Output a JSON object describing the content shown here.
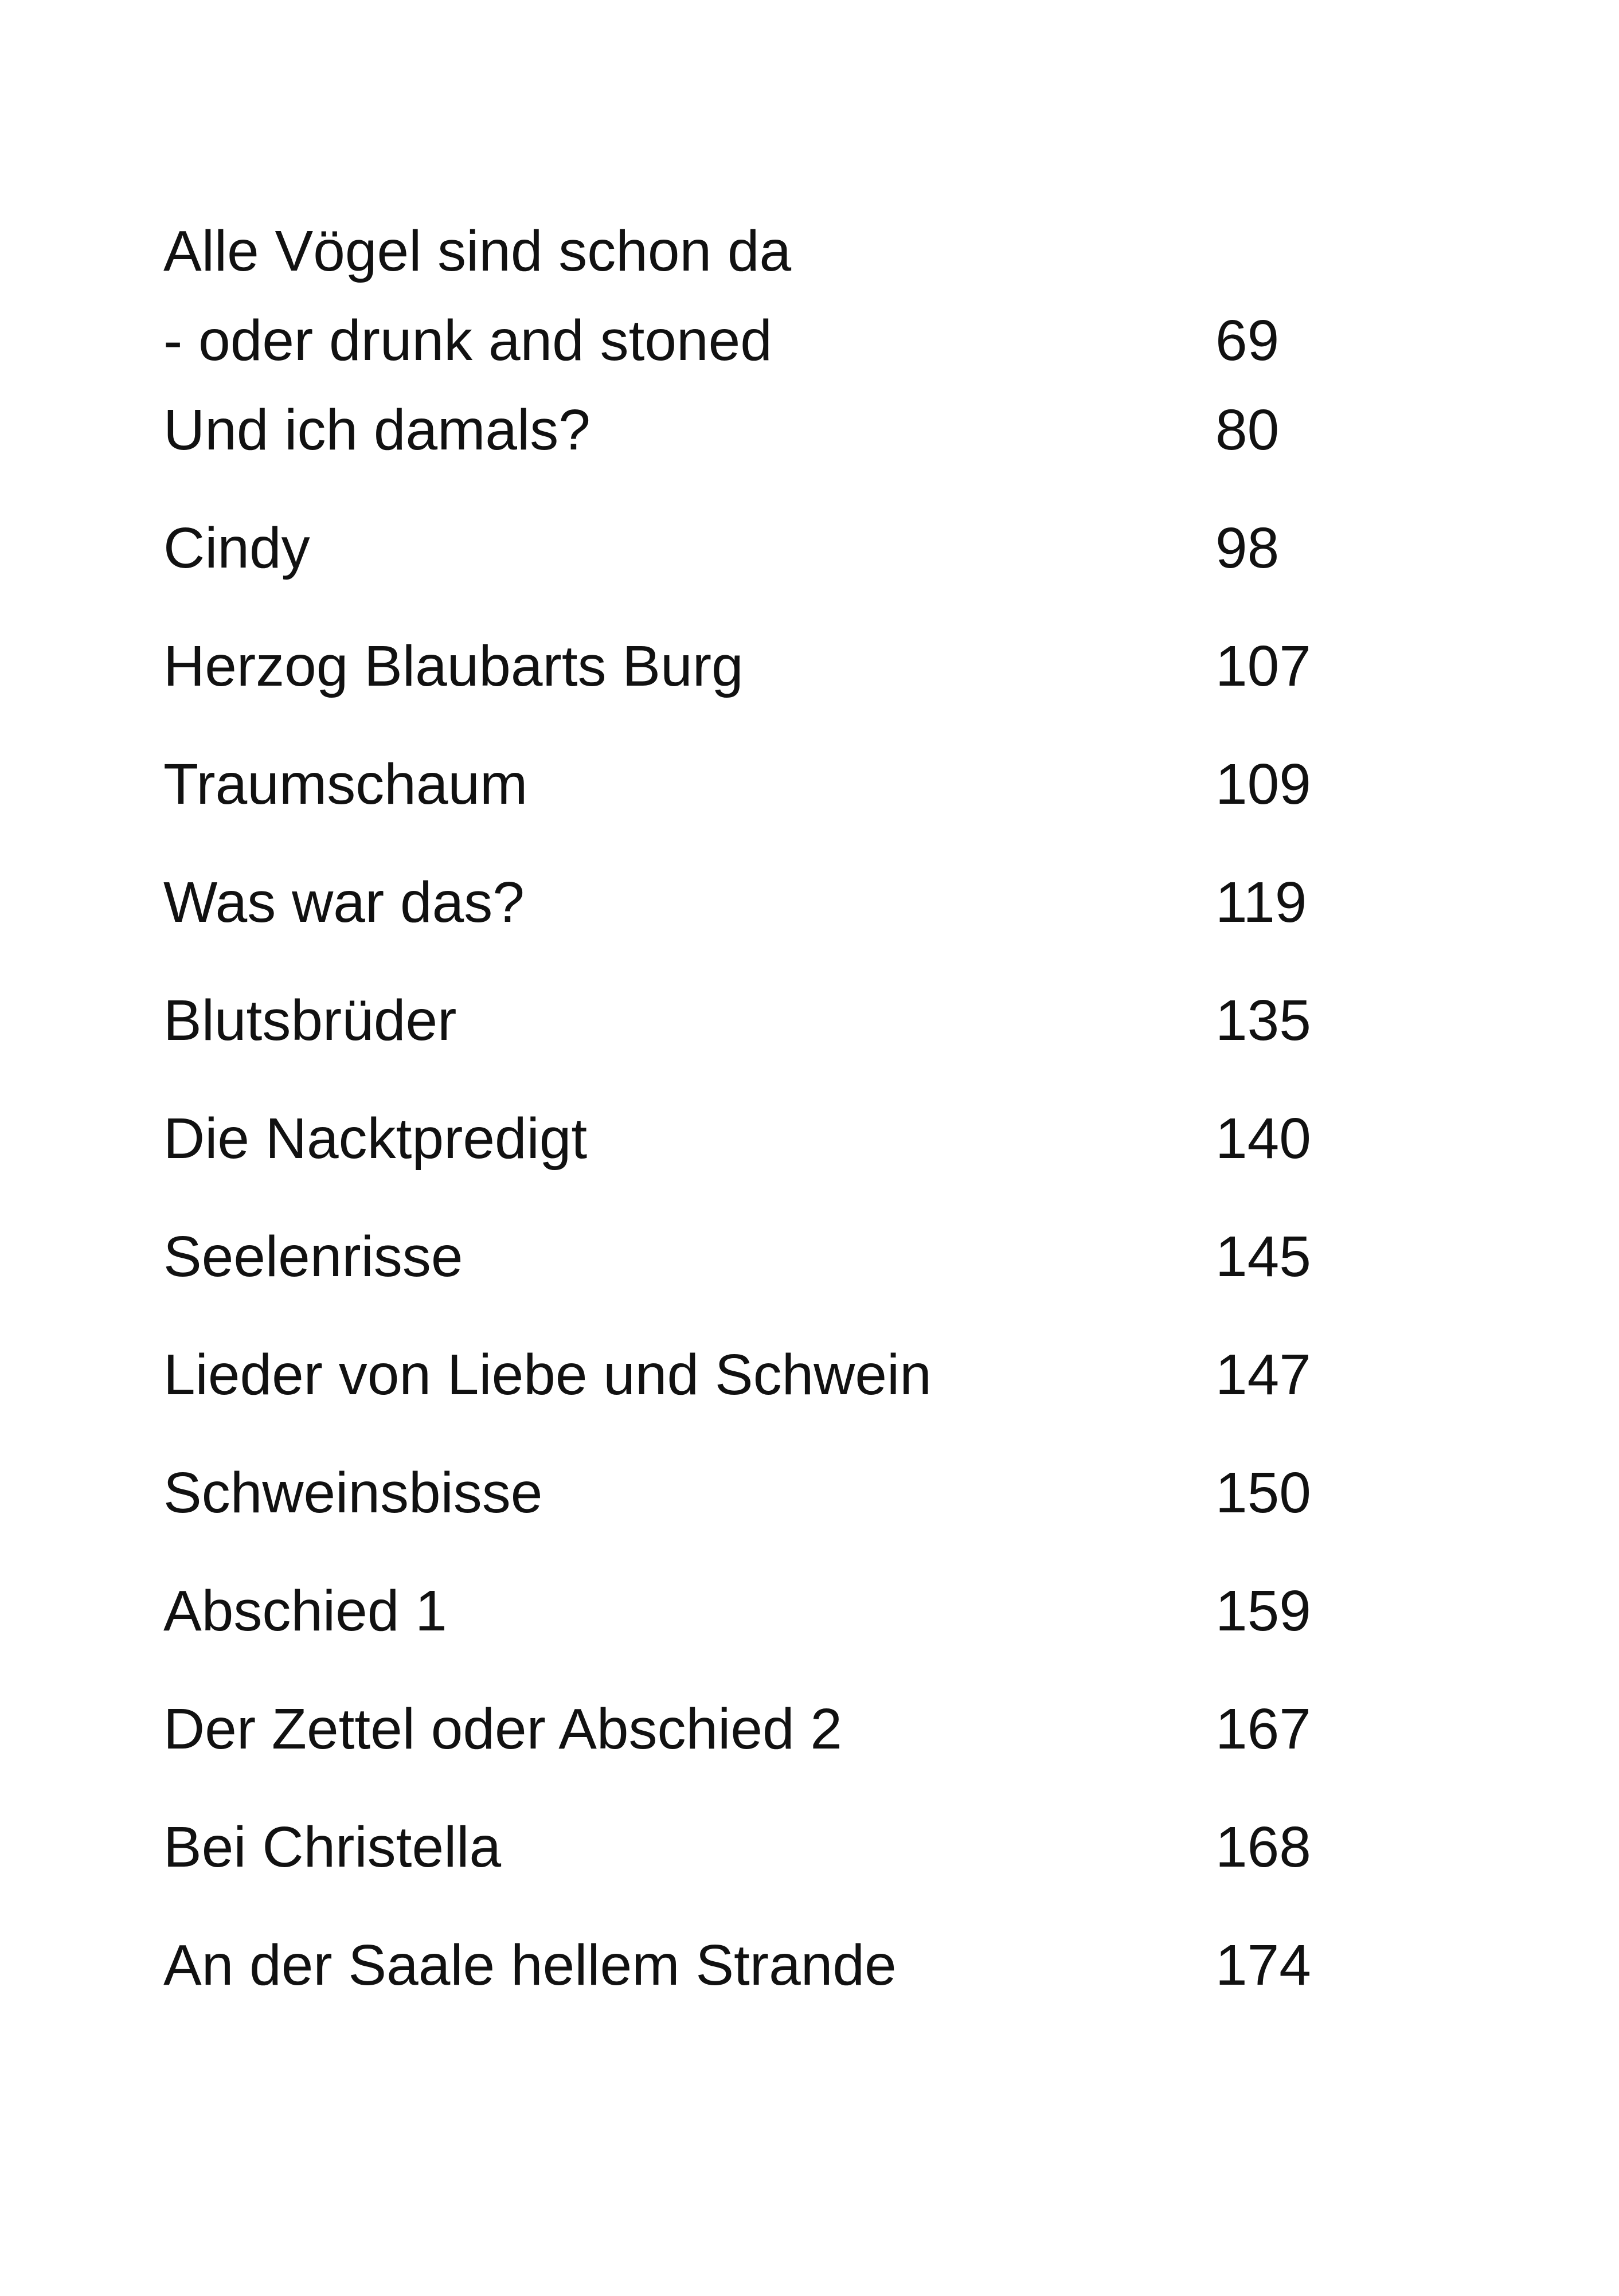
{
  "toc": {
    "entries": [
      {
        "title": "Alle Vögel sind schon da\n- oder drunk and stoned",
        "page": "69"
      },
      {
        "title": "Und ich damals?",
        "page": "80"
      },
      {
        "title": "Cindy",
        "page": "98"
      },
      {
        "title": "Herzog Blaubarts Burg",
        "page": "107"
      },
      {
        "title": "Traumschaum",
        "page": "109"
      },
      {
        "title": "Was war das?",
        "page": "119"
      },
      {
        "title": "Blutsbrüder",
        "page": "135"
      },
      {
        "title": "Die Nacktpredigt",
        "page": "140"
      },
      {
        "title": "Seelenrisse",
        "page": "145"
      },
      {
        "title": "Lieder von Liebe und Schwein",
        "page": "147"
      },
      {
        "title": "Schweinsbisse",
        "page": "150"
      },
      {
        "title": "Abschied 1",
        "page": "159"
      },
      {
        "title": "Der Zettel oder Abschied 2",
        "page": "167"
      },
      {
        "title": "Bei Christella",
        "page": "168"
      },
      {
        "title": "An der Saale hellem Strande",
        "page": "174"
      }
    ]
  }
}
